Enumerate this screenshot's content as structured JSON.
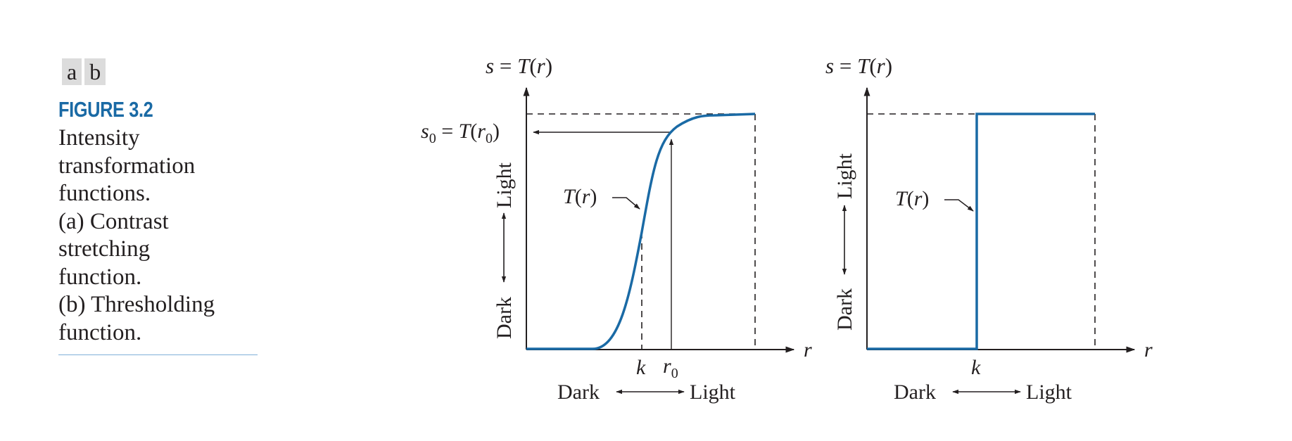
{
  "panel_labels": [
    "a",
    "b"
  ],
  "figure_number": "FIGURE 3.2",
  "caption_lines": [
    "Intensity",
    "transformation",
    "functions.",
    "(a) Contrast",
    "stretching",
    "function.",
    "(b) Thresholding",
    "function."
  ],
  "colors": {
    "curve": "#1a6aa5",
    "figure_number": "#1a6aa5",
    "rule": "#7fb0d8"
  },
  "plots": {
    "a": {
      "y_axis_label": {
        "s": "s",
        "eq": " = ",
        "T": "T",
        "open": "(",
        "r": "r",
        "close": ")"
      },
      "x_axis_label": "r",
      "curve_label": {
        "T": "T",
        "open": "(",
        "r": "r",
        "close": ")"
      },
      "s0_label": {
        "s": "s",
        "sub": "0",
        "eq": " = ",
        "T": "T",
        "open": "(",
        "r": "r",
        "sub2": "0",
        "close": ")"
      },
      "tick_k": "k",
      "tick_r0": {
        "r": "r",
        "sub": "0"
      },
      "x_dark": "Dark",
      "x_light": "Light",
      "y_dark": "Dark",
      "y_light": "Light"
    },
    "b": {
      "y_axis_label": {
        "s": "s",
        "eq": " = ",
        "T": "T",
        "open": "(",
        "r": "r",
        "close": ")"
      },
      "x_axis_label": "r",
      "curve_label": {
        "T": "T",
        "open": "(",
        "r": "r",
        "close": ")"
      },
      "tick_k": "k",
      "x_dark": "Dark",
      "x_light": "Light",
      "y_dark": "Dark",
      "y_light": "Light"
    }
  }
}
